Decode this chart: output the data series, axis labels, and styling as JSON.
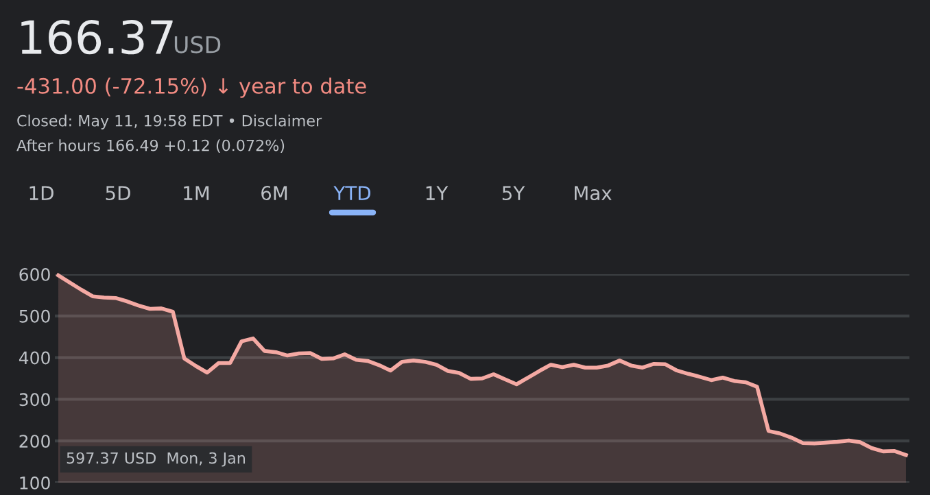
{
  "chart_data": {
    "type": "area",
    "title": "166.37 USD",
    "subtitle": "-431.00 (-72.15%) ↓ year to date",
    "annotations": [
      "Closed: May 11, 19:58 EDT • Disclaimer",
      "After hours 166.49 +0.12 (0.072%)",
      "1D",
      "5D",
      "1M",
      "6M",
      "YTD",
      "1Y",
      "5Y",
      "Max",
      "597.37 USD  Mon, 3 Jan"
    ],
    "categories": [
      null,
      null,
      null,
      null,
      null,
      null,
      null,
      null,
      null,
      null,
      null,
      null,
      null,
      null,
      null,
      null,
      null,
      null,
      null,
      null,
      null,
      null,
      null,
      null,
      null,
      null,
      null,
      null,
      null,
      null,
      null,
      null,
      null,
      null,
      null,
      null,
      null,
      null,
      null,
      null,
      null,
      null,
      null,
      null,
      null,
      null,
      null,
      null,
      null,
      null,
      null,
      null,
      null,
      null,
      null,
      null,
      null,
      null,
      null,
      null,
      null,
      null,
      null,
      null,
      null,
      null,
      null,
      null,
      null,
      null,
      null,
      null,
      null,
      null,
      null
    ],
    "series": [
      {
        "color": "#f4a9a3",
        "values": [
          597.37,
          580,
          563,
          547,
          544,
          543,
          535,
          525,
          517,
          518,
          510,
          398,
          380,
          364,
          387,
          387,
          439,
          446,
          416,
          413,
          405,
          410,
          411,
          397,
          398,
          408,
          395,
          392,
          382,
          369,
          390,
          393,
          390,
          383,
          368,
          363,
          349,
          350,
          360,
          348,
          336,
          352,
          368,
          383,
          377,
          383,
          376,
          376,
          381,
          393,
          381,
          376,
          385,
          384,
          369,
          361,
          354,
          346,
          352,
          344,
          341,
          330,
          224,
          218,
          208,
          195,
          194,
          196,
          198,
          201,
          197,
          183,
          175,
          176,
          166.37
        ]
      }
    ],
    "ylim": [
      100,
      600
    ],
    "yticks": [
      100,
      200,
      300,
      400,
      500,
      600
    ],
    "grid": "y",
    "legend": false
  }
}
